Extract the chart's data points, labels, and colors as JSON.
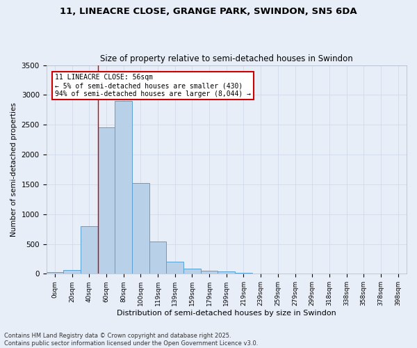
{
  "title_line1": "11, LINEACRE CLOSE, GRANGE PARK, SWINDON, SN5 6DA",
  "title_line2": "Size of property relative to semi-detached houses in Swindon",
  "xlabel": "Distribution of semi-detached houses by size in Swindon",
  "ylabel": "Number of semi-detached properties",
  "footer": "Contains HM Land Registry data © Crown copyright and database right 2025.\nContains public sector information licensed under the Open Government Licence v3.0.",
  "bin_labels": [
    "0sqm",
    "20sqm",
    "40sqm",
    "60sqm",
    "80sqm",
    "100sqm",
    "119sqm",
    "139sqm",
    "159sqm",
    "179sqm",
    "199sqm",
    "219sqm",
    "239sqm",
    "259sqm",
    "279sqm",
    "299sqm",
    "318sqm",
    "338sqm",
    "358sqm",
    "378sqm",
    "398sqm"
  ],
  "bar_values": [
    30,
    60,
    800,
    2450,
    2900,
    1520,
    540,
    200,
    90,
    55,
    40,
    20,
    5,
    5,
    5,
    5,
    5,
    0,
    0,
    0,
    0
  ],
  "bar_color": "#b8d0e8",
  "bar_edge_color": "#5a9fd4",
  "grid_color": "#d0daea",
  "background_color": "#e8eef8",
  "annotation_box_color": "#ffffff",
  "annotation_border_color": "#cc0000",
  "vline_color": "#cc0000",
  "vline_x": 3,
  "annotation_title": "11 LINEACRE CLOSE: 56sqm",
  "annotation_line2": "← 5% of semi-detached houses are smaller (430)",
  "annotation_line3": "94% of semi-detached houses are larger (8,044) →",
  "ylim": [
    0,
    3500
  ],
  "yticks": [
    0,
    500,
    1000,
    1500,
    2000,
    2500,
    3000,
    3500
  ]
}
